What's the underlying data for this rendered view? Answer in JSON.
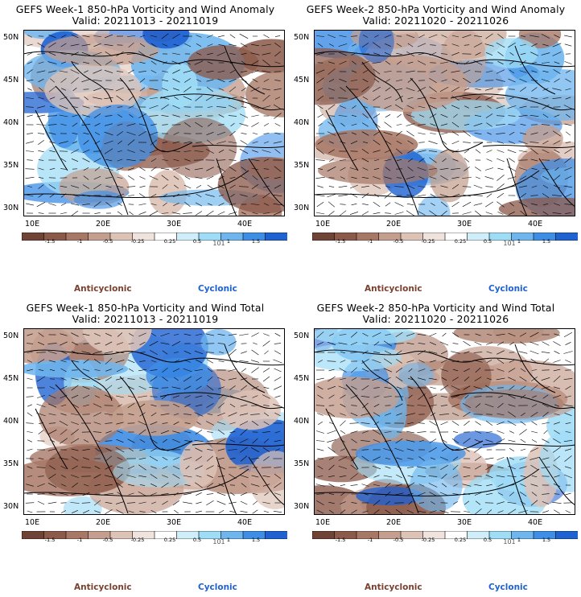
{
  "panels": [
    {
      "title": "GEFS Week-1 850-hPa Vorticity and Wind Anomaly",
      "valid": "Valid: 20211013 - 20211019"
    },
    {
      "title": "GEFS Week-2 850-hPa Vorticity and Wind Anomaly",
      "valid": "Valid: 20211020 - 20211026"
    },
    {
      "title": "GEFS Week-1 850-hPa Vorticity and Wind Total",
      "valid": "Valid: 20211013 - 20211019"
    },
    {
      "title": "GEFS Week-2 850-hPa Vorticity and Wind Total",
      "valid": "Valid: 20211020 - 20211026"
    }
  ],
  "lat_labels": [
    "50N",
    "45N",
    "40N",
    "35N",
    "30N"
  ],
  "lon_labels": [
    "10E",
    "20E",
    "30E",
    "40E"
  ],
  "colorbar": {
    "labels": [
      "-1.5",
      "-1",
      "-0.5",
      "-0.25",
      "0.25",
      "0.5",
      "1",
      "1.5"
    ],
    "extra_label": "101",
    "colors": [
      "#6f4336",
      "#8b5a4b",
      "#a87866",
      "#c49e8e",
      "#ddc2b6",
      "#f0e2dc",
      "#ffffff",
      "#cfeefa",
      "#9fdcf6",
      "#6fb6ee",
      "#3e8ee6",
      "#1f62d2"
    ]
  },
  "legend": {
    "anticyclonic": "Anticyclonic",
    "cyclonic": "Cyclonic"
  },
  "map_colors": {
    "anticyclonic": "#a87866",
    "cyclonic": "#3e8ee6",
    "neutral": "#ffffff",
    "coast": "#000000"
  }
}
